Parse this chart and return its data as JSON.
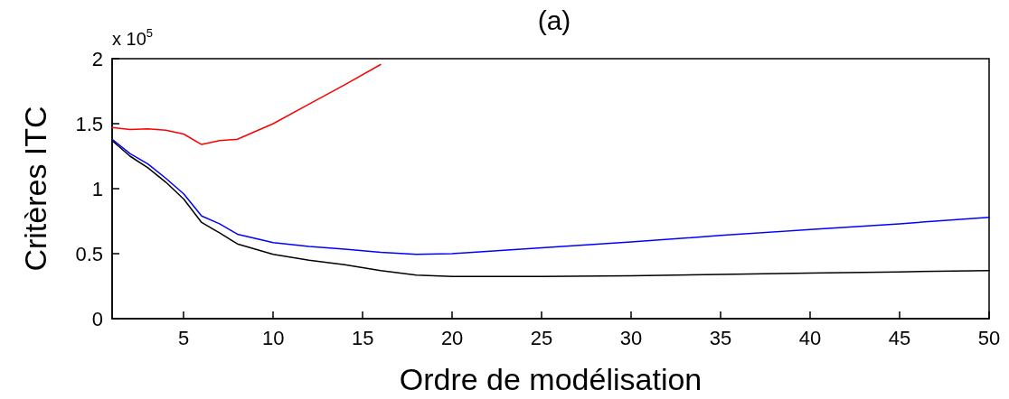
{
  "chart_data": {
    "type": "line",
    "title": "(a)",
    "xlabel": "Ordre de modélisation",
    "ylabel": "Critères ITC",
    "annotations": [
      "x 10$^{5}$"
    ],
    "xlim": [
      1,
      50
    ],
    "xticks": [
      5,
      10,
      15,
      20,
      25,
      30,
      35,
      40,
      45,
      50
    ],
    "ylim": [
      0,
      2
    ],
    "yticks": [
      0,
      0.5,
      1,
      1.5,
      2
    ],
    "marker": "none",
    "line_style": "solid",
    "series": [
      {
        "color": "#ff0000",
        "x": [
          1,
          2,
          3,
          4,
          5,
          6,
          7,
          8,
          10,
          12,
          14,
          16
        ],
        "values": [
          1.47,
          1.455,
          1.46,
          1.45,
          1.42,
          1.34,
          1.37,
          1.38,
          1.5,
          1.65,
          1.8,
          1.955
        ]
      },
      {
        "color": "#0000ff",
        "x": [
          1,
          2,
          3,
          4,
          5,
          6,
          7,
          8,
          10,
          12,
          14,
          16,
          18,
          20,
          25,
          30,
          35,
          40,
          45,
          50
        ],
        "values": [
          1.38,
          1.27,
          1.19,
          1.08,
          0.96,
          0.79,
          0.73,
          0.65,
          0.585,
          0.555,
          0.535,
          0.51,
          0.495,
          0.5,
          0.545,
          0.59,
          0.64,
          0.685,
          0.73,
          0.78
        ]
      },
      {
        "color": "#000000",
        "x": [
          1,
          2,
          3,
          4,
          5,
          6,
          7,
          8,
          10,
          12,
          14,
          16,
          18,
          20,
          25,
          30,
          35,
          40,
          45,
          50
        ],
        "values": [
          1.37,
          1.25,
          1.16,
          1.05,
          0.92,
          0.74,
          0.66,
          0.575,
          0.495,
          0.45,
          0.415,
          0.37,
          0.335,
          0.325,
          0.325,
          0.33,
          0.34,
          0.35,
          0.36,
          0.37
        ]
      }
    ]
  }
}
